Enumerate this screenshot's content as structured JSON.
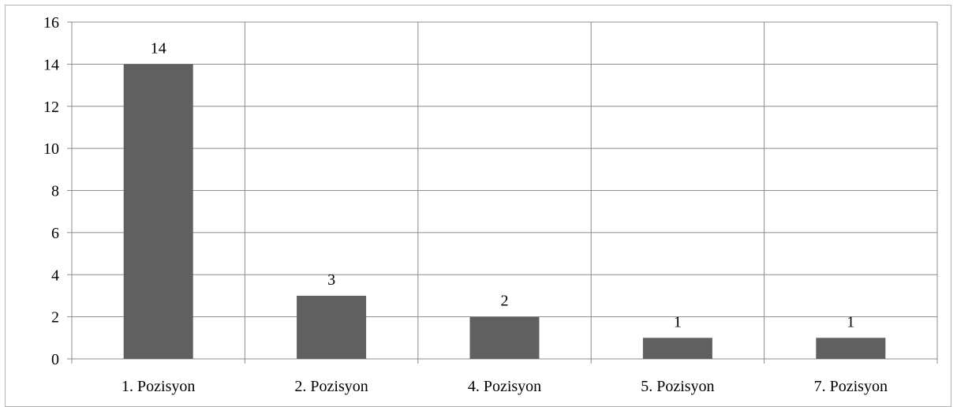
{
  "chart_data": {
    "type": "bar",
    "categories": [
      "1. Pozisyon",
      "2. Pozisyon",
      "4. Pozisyon",
      "5. Pozisyon",
      "7. Pozisyon"
    ],
    "values": [
      14,
      3,
      2,
      1,
      1
    ],
    "data_labels": [
      "14",
      "3",
      "2",
      "1",
      "1"
    ],
    "ylim": [
      0,
      16
    ],
    "yticks": [
      0,
      2,
      4,
      6,
      8,
      10,
      12,
      14,
      16
    ],
    "grid": true,
    "legend": "none",
    "bar_color": "#606060",
    "grid_color": "#8c8c8c"
  }
}
